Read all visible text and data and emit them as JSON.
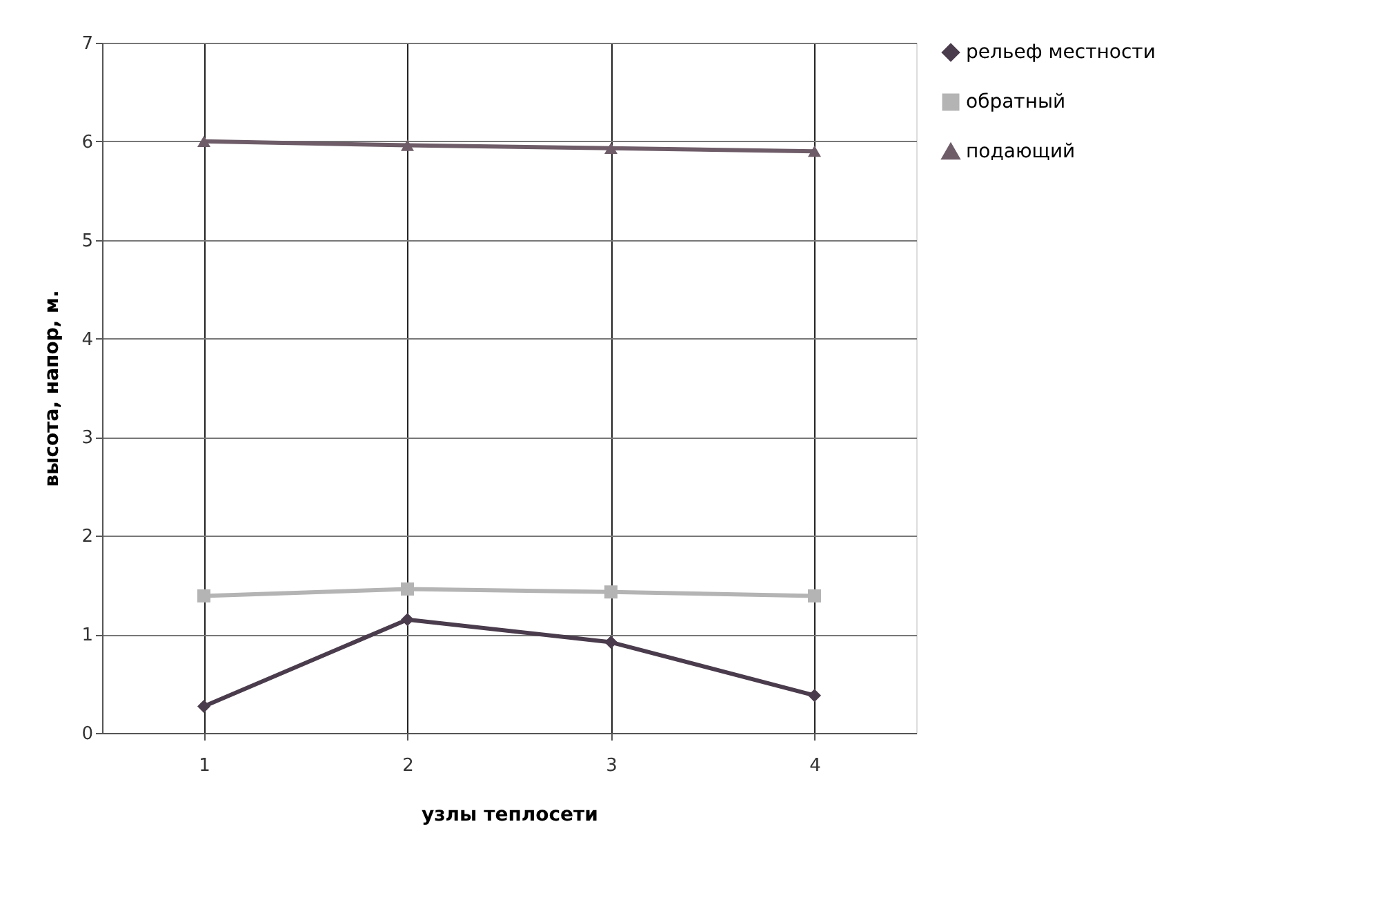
{
  "chart_data": {
    "type": "line",
    "xlabel": "узлы теплосети",
    "ylabel": "высота, напор, м.",
    "categories": [
      "1",
      "2",
      "3",
      "4"
    ],
    "series": [
      {
        "name": "рельеф местности",
        "color": "#4a3c4c",
        "values": [
          0.27,
          1.15,
          0.92,
          0.38
        ],
        "marker": "diamond"
      },
      {
        "name": "обратный",
        "color": "#b4b4b4",
        "values": [
          1.39,
          1.46,
          1.43,
          1.39
        ],
        "marker": "square"
      },
      {
        "name": "подающий",
        "color": "#6e5c68",
        "values": [
          6.0,
          5.96,
          5.93,
          5.9
        ],
        "marker": "triangle"
      }
    ],
    "ylim": [
      0,
      7
    ],
    "yticks": [
      0,
      1,
      2,
      3,
      4,
      5,
      6,
      7
    ],
    "grid": true,
    "legend": "right",
    "line_style": "solid"
  }
}
